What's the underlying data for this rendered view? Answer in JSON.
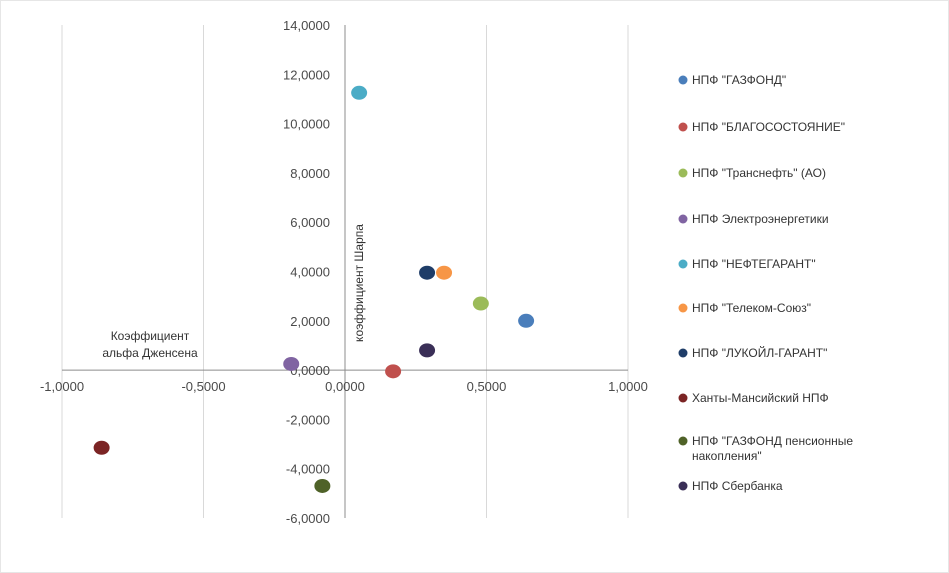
{
  "chart_data": {
    "type": "scatter",
    "title": "",
    "xlabel": "Коэффициент альфа Дженсена",
    "xlabel_lines": [
      "Коэффициент",
      "альфа Дженсена"
    ],
    "ylabel": "коэффициент Шарпа",
    "xlim": [
      -1.0,
      1.0
    ],
    "ylim": [
      -6.0,
      14.0
    ],
    "x_ticks": [
      -1.0,
      -0.5,
      0.0,
      0.5,
      1.0
    ],
    "x_tick_labels": [
      "-1,0000",
      "-0,5000",
      "0,0000",
      "0,5000",
      "1,0000"
    ],
    "y_ticks": [
      -6,
      -4,
      -2,
      0,
      2,
      4,
      6,
      8,
      10,
      12,
      14
    ],
    "y_tick_labels": [
      "-6,0000",
      "-4,0000",
      "-2,0000",
      "0,0000",
      "2,0000",
      "4,0000",
      "6,0000",
      "8,0000",
      "10,0000",
      "12,0000",
      "14,0000"
    ],
    "grid": "vertical",
    "legend_position": "right",
    "series": [
      {
        "name": "НПФ \"ГАЗФОНД\"",
        "color": "#4a7ebb",
        "x": 0.64,
        "y": 2.0
      },
      {
        "name": "НПФ \"БЛАГОСОСТОЯНИЕ\"",
        "color": "#c0504d",
        "x": 0.17,
        "y": -0.05
      },
      {
        "name": "НПФ \"Транснефть\" (АО)",
        "color": "#9bbb59",
        "x": 0.48,
        "y": 2.7
      },
      {
        "name": "НПФ Электроэнергетики",
        "color": "#8064a2",
        "x": -0.19,
        "y": 0.25
      },
      {
        "name": "НПФ \"НЕФТЕГАРАНТ\"",
        "color": "#4bacc6",
        "x": 0.05,
        "y": 11.25
      },
      {
        "name": "НПФ \"Телеком-Союз\"",
        "color": "#f79646",
        "x": 0.35,
        "y": 3.95
      },
      {
        "name": "НПФ \"ЛУКОЙЛ-ГАРАНТ\"",
        "color": "#1f3d68",
        "x": 0.29,
        "y": 3.95
      },
      {
        "name": "Ханты-Мансийский НПФ",
        "color": "#7b2424",
        "x": -0.86,
        "y": -3.15
      },
      {
        "name": "НПФ \"ГАЗФОНД пенсионные накопления\"",
        "color": "#4f6228",
        "x": -0.08,
        "y": -4.7
      },
      {
        "name": "НПФ Сбербанка",
        "color": "#3a2f57",
        "x": 0.29,
        "y": 0.8
      }
    ],
    "legend_lines": [
      [
        "НПФ \"ГАЗФОНД\""
      ],
      [
        "НПФ \"БЛАГОСОСТОЯНИЕ\""
      ],
      [
        "НПФ \"Транснефть\" (АО)"
      ],
      [
        "НПФ Электроэнергетики"
      ],
      [
        "НПФ \"НЕФТЕГАРАНТ\""
      ],
      [
        "НПФ \"Телеком-Союз\""
      ],
      [
        "НПФ \"ЛУКОЙЛ-ГАРАНТ\""
      ],
      [
        "Ханты-Мансийский НПФ"
      ],
      [
        "НПФ \"ГАЗФОНД пенсионные",
        "накопления\""
      ],
      [
        "НПФ Сбербанка"
      ]
    ]
  }
}
